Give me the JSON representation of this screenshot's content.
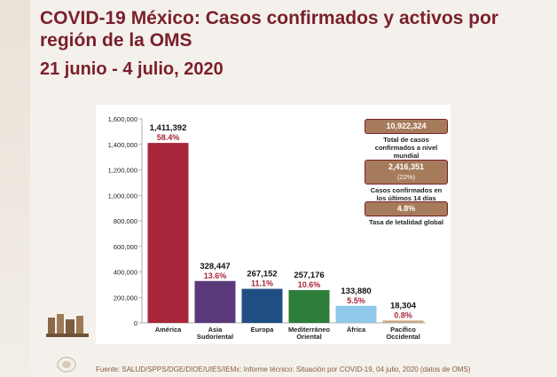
{
  "header": {
    "title": "COVID-19 México: Casos confirmados y activos por región de la OMS",
    "subtitle": "21 junio - 4 julio, 2020"
  },
  "stats": [
    {
      "value": "10,922,324",
      "label": "Total de casos confirmados a nivel mundial"
    },
    {
      "value": "2,416,351",
      "sub": "(22%)",
      "label": "Casos confirmados en los últimos 14 días"
    },
    {
      "value": "4.8%",
      "label": "Tasa de letalidad global"
    }
  ],
  "source": "Fuente: SALUD/SPPS/DGE/DIOE/UIES/IEMx: Informe técnico: Situación por COVID-19, 04 julio, 2020 (datos de OMS)",
  "chart_data": {
    "type": "bar",
    "categories": [
      "América",
      "Asia Sudoriental",
      "Europa",
      "Mediterráneo Oriental",
      "África",
      "Pacífico Occidental"
    ],
    "category_lines": [
      [
        "América"
      ],
      [
        "Asia",
        "Sudoriental"
      ],
      [
        "Europa"
      ],
      [
        "Mediterráneo",
        "Oriental"
      ],
      [
        "África"
      ],
      [
        "Pacífico",
        "Occidental"
      ]
    ],
    "values": [
      1411392,
      328447,
      267152,
      257176,
      133880,
      18304
    ],
    "value_labels": [
      "1,411,392",
      "328,447",
      "267,152",
      "257,176",
      "133,880",
      "18,304"
    ],
    "percent_labels": [
      "58.4%",
      "13.6%",
      "11.1%",
      "10.6%",
      "5.5%",
      "0.8%"
    ],
    "colors": [
      "#a8263a",
      "#5a3a7a",
      "#1f4f82",
      "#2e7d3a",
      "#8fc8e8",
      "#c8a882"
    ],
    "ylim": [
      0,
      1600000
    ],
    "yticks": [
      0,
      200000,
      400000,
      600000,
      800000,
      1000000,
      1200000,
      1400000,
      1600000
    ],
    "ytick_labels": [
      "0",
      "200,000",
      "400,000",
      "600,000",
      "800,000",
      "1,000,000",
      "1,200,000",
      "1,400,000",
      "1,600,000"
    ],
    "grid": false,
    "accent_label_color": "#a8263a"
  }
}
